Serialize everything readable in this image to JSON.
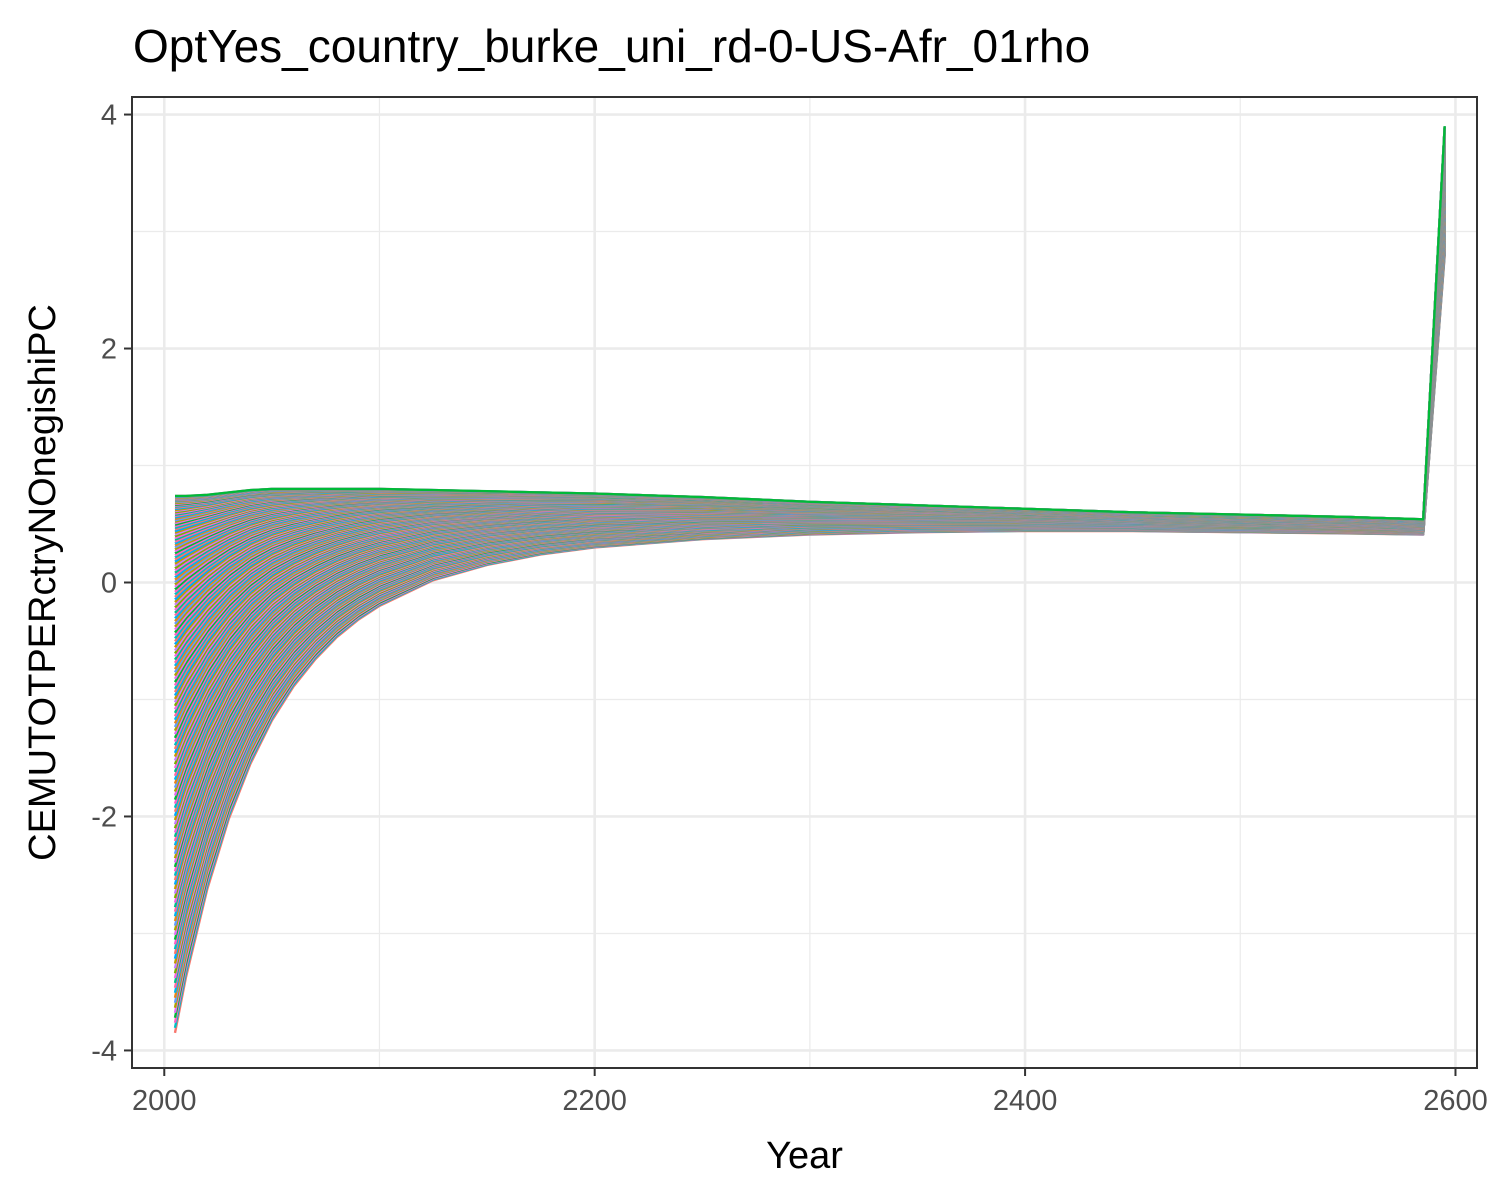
{
  "chart_data": {
    "type": "line",
    "title": "OptYes_country_burke_uni_rd-0-US-Afr_01rho",
    "xlabel": "Year",
    "ylabel": "CEMUTOTPERctryNOnegishiPC",
    "xlim": [
      1985,
      2610
    ],
    "ylim": [
      -4.15,
      4.15
    ],
    "x_ticks": [
      2000,
      2200,
      2400,
      2600
    ],
    "x_tick_labels": [
      "2000",
      "2200",
      "2400",
      "2600"
    ],
    "y_ticks": [
      -4,
      -2,
      0,
      2,
      4
    ],
    "y_tick_labels": [
      "-4",
      "-2",
      "0",
      "2",
      "4"
    ],
    "grid": true,
    "legend": "none",
    "series_count": 180,
    "series_palette": [
      "#F8766D",
      "#E7861B",
      "#C49A00",
      "#AFA100",
      "#7CAE00",
      "#00BA38",
      "#00C08B",
      "#00BFC4",
      "#00B4F0",
      "#00A9FF",
      "#619CFF",
      "#C77CFF",
      "#E76BF3",
      "#F564E3",
      "#FF61C3",
      "#FF67A4"
    ],
    "series_envelope": {
      "x": [
        2005,
        2010,
        2020,
        2030,
        2040,
        2050,
        2060,
        2070,
        2080,
        2090,
        2100,
        2125,
        2150,
        2175,
        2200,
        2250,
        2300,
        2350,
        2400,
        2450,
        2500,
        2550,
        2585,
        2595
      ],
      "lower": [
        -3.85,
        -3.38,
        -2.62,
        -2.02,
        -1.55,
        -1.18,
        -0.89,
        -0.66,
        -0.47,
        -0.32,
        -0.2,
        0.02,
        0.15,
        0.24,
        0.3,
        0.37,
        0.41,
        0.43,
        0.44,
        0.44,
        0.43,
        0.42,
        0.41,
        2.8
      ],
      "upper": [
        0.74,
        0.74,
        0.75,
        0.77,
        0.79,
        0.8,
        0.8,
        0.8,
        0.8,
        0.8,
        0.8,
        0.79,
        0.78,
        0.77,
        0.76,
        0.73,
        0.69,
        0.66,
        0.63,
        0.6,
        0.58,
        0.56,
        0.54,
        3.9
      ]
    }
  }
}
